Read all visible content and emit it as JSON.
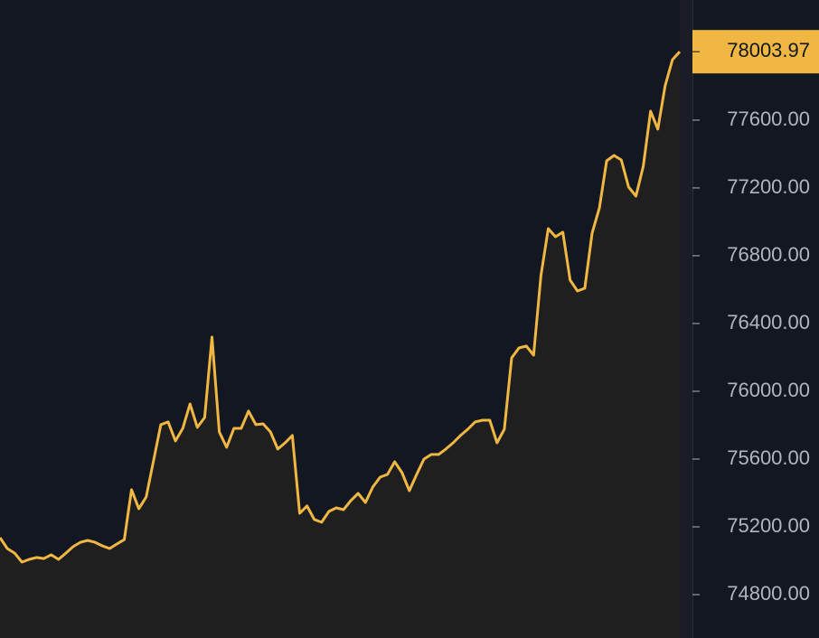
{
  "chart_data": {
    "type": "line",
    "color": "#f0b742",
    "area_fill": "#1f1f20",
    "values": [
      75136,
      75072,
      75045,
      74992,
      75008,
      75019,
      75013,
      75035,
      75008,
      75045,
      75083,
      75109,
      75120,
      75109,
      75088,
      75072,
      75099,
      75125,
      75419,
      75307,
      75376,
      75589,
      75803,
      75819,
      75707,
      75781,
      75925,
      75787,
      75845,
      76320,
      75760,
      75669,
      75781,
      75781,
      75883,
      75803,
      75808,
      75760,
      75659,
      75696,
      75739,
      75280,
      75323,
      75243,
      75227,
      75291,
      75312,
      75301,
      75355,
      75397,
      75344,
      75435,
      75493,
      75509,
      75584,
      75520,
      75413,
      75509,
      75600,
      75627,
      75627,
      75659,
      75696,
      75739,
      75776,
      75819,
      75829,
      75829,
      75696,
      75776,
      76197,
      76256,
      76267,
      76213,
      76683,
      76960,
      76912,
      76939,
      76656,
      76592,
      76608,
      76933,
      77083,
      77360,
      77392,
      77365,
      77205,
      77152,
      77328,
      77653,
      77547,
      77803,
      77957,
      78003.97
    ],
    "ylim": [
      74544,
      78309
    ],
    "yticks": [
      {
        "value": 74800,
        "label": "74800.00"
      },
      {
        "value": 75200,
        "label": "75200.00"
      },
      {
        "value": 75600,
        "label": "75600.00"
      },
      {
        "value": 76000,
        "label": "76000.00"
      },
      {
        "value": 76400,
        "label": "76400.00"
      },
      {
        "value": 76800,
        "label": "76800.00"
      },
      {
        "value": 77200,
        "label": "77200.00"
      },
      {
        "value": 77600,
        "label": "77600.00"
      }
    ],
    "last_value_badge": true
  }
}
